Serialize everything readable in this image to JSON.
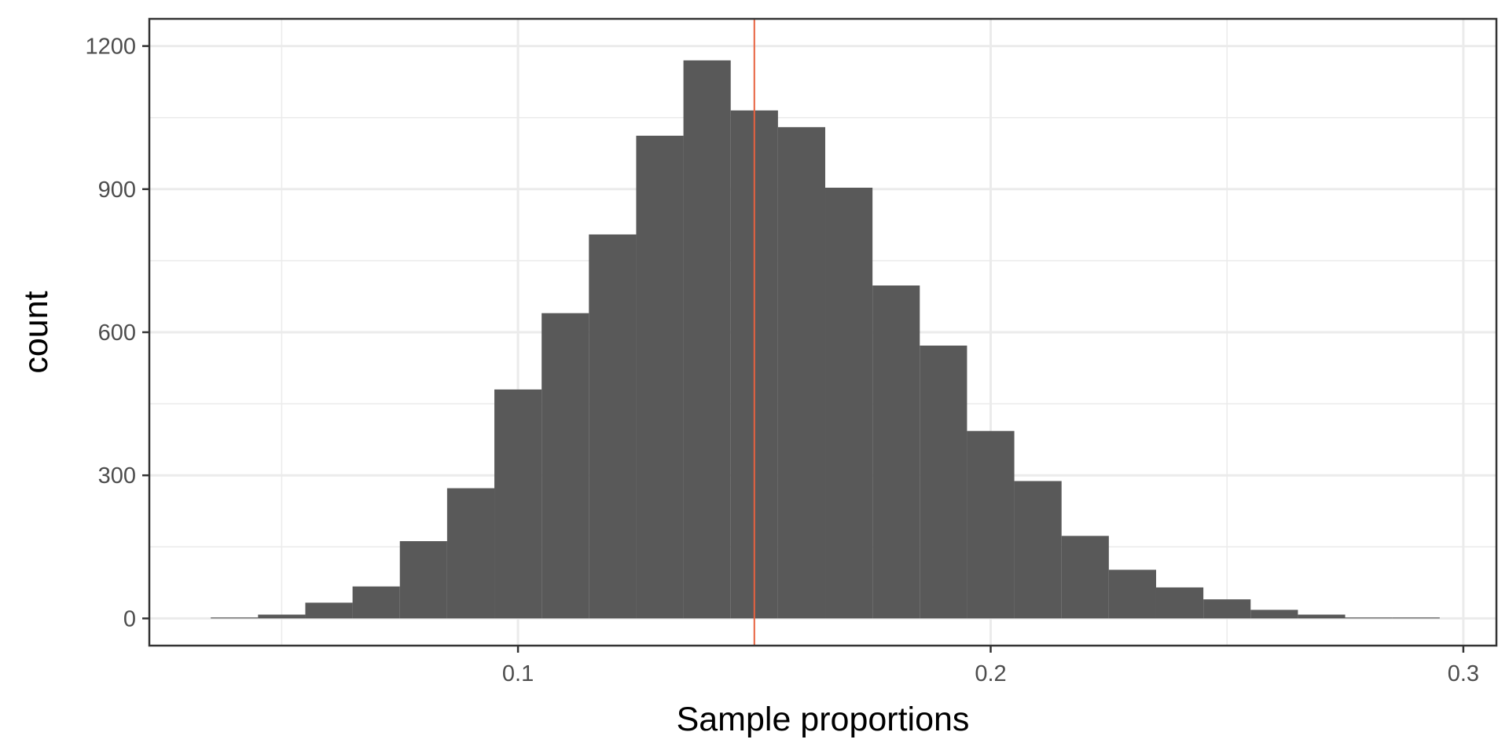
{
  "chart_data": {
    "type": "bar",
    "subtype": "histogram",
    "xlabel": "Sample proportions",
    "ylabel": "count",
    "xlim": [
      0.022,
      0.307
    ],
    "ylim": [
      -57,
      1257
    ],
    "x_ticks": [
      0.1,
      0.2,
      0.3
    ],
    "x_tick_labels": [
      "0.1",
      "0.2",
      "0.3"
    ],
    "x_minor_ticks": [
      0.05,
      0.15,
      0.25
    ],
    "y_ticks": [
      0,
      300,
      600,
      900,
      1200
    ],
    "y_tick_labels": [
      "0",
      "300",
      "600",
      "900",
      "1200"
    ],
    "y_minor_ticks": [
      150,
      450,
      750,
      1050
    ],
    "bin_width": 0.01,
    "bin_centers": [
      0.04,
      0.05,
      0.06,
      0.07,
      0.08,
      0.09,
      0.1,
      0.11,
      0.12,
      0.13,
      0.14,
      0.15,
      0.16,
      0.17,
      0.18,
      0.19,
      0.2,
      0.21,
      0.22,
      0.23,
      0.24,
      0.25,
      0.26,
      0.27,
      0.28,
      0.29
    ],
    "values": [
      2,
      8,
      33,
      67,
      162,
      273,
      480,
      640,
      805,
      1012,
      1170,
      1065,
      1030,
      903,
      698,
      572,
      393,
      288,
      173,
      102,
      65,
      40,
      18,
      8,
      2,
      2
    ],
    "bar_color": "#595959",
    "reference_line": {
      "x": 0.15,
      "color": "#e8623f"
    },
    "grid": true,
    "theme": "bw"
  }
}
